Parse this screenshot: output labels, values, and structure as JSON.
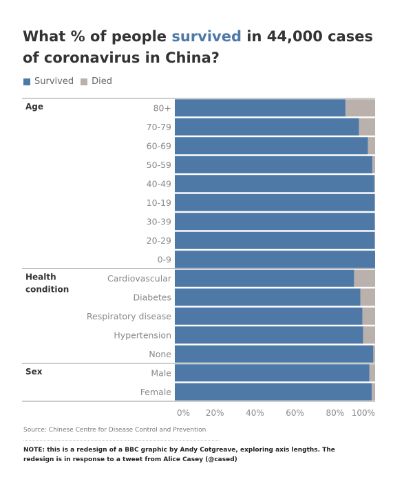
{
  "title": {
    "part1": "What % of people ",
    "highlight": "survived",
    "part2": " in 44,000 cases of coronavirus in China?"
  },
  "legend": [
    {
      "label": "Survived",
      "color": "#4e79a7"
    },
    {
      "label": "Died",
      "color": "#bab0ac"
    }
  ],
  "chart_data": {
    "type": "bar",
    "orientation": "horizontal",
    "stacked": true,
    "xlim": [
      0,
      100
    ],
    "x_ticks": [
      "0%",
      "20%",
      "40%",
      "60%",
      "80%",
      "100%"
    ],
    "groups": [
      {
        "name": "Age",
        "categories": [
          "80+",
          "70-79",
          "60-69",
          "50-59",
          "40-49",
          "10-19",
          "30-39",
          "20-29",
          "0-9"
        ]
      },
      {
        "name": "Health condition",
        "categories": [
          "Cardiovascular",
          "Diabetes",
          "Respiratory disease",
          "Hypertension",
          "None"
        ]
      },
      {
        "name": "Sex",
        "categories": [
          "Male",
          "Female"
        ]
      }
    ],
    "series": [
      {
        "name": "Survived",
        "color": "#4e79a7",
        "values": [
          85.2,
          92.0,
          96.4,
          98.7,
          99.6,
          99.8,
          99.8,
          99.8,
          100.0,
          89.5,
          92.7,
          93.7,
          94.0,
          99.1,
          97.2,
          98.3
        ]
      },
      {
        "name": "Died",
        "color": "#bab0ac",
        "values": [
          14.8,
          8.0,
          3.6,
          1.3,
          0.4,
          0.2,
          0.2,
          0.2,
          0.0,
          10.5,
          7.3,
          6.3,
          6.0,
          0.9,
          2.8,
          1.7
        ]
      }
    ]
  },
  "source": "Source: Chinese Centre for Disease Control and Prevention",
  "note": "NOTE: this is a redesign of a BBC graphic by Andy Cotgreave, exploring axis lengths. The redesign is in response to a tweet from Alice Casey (@cased)"
}
